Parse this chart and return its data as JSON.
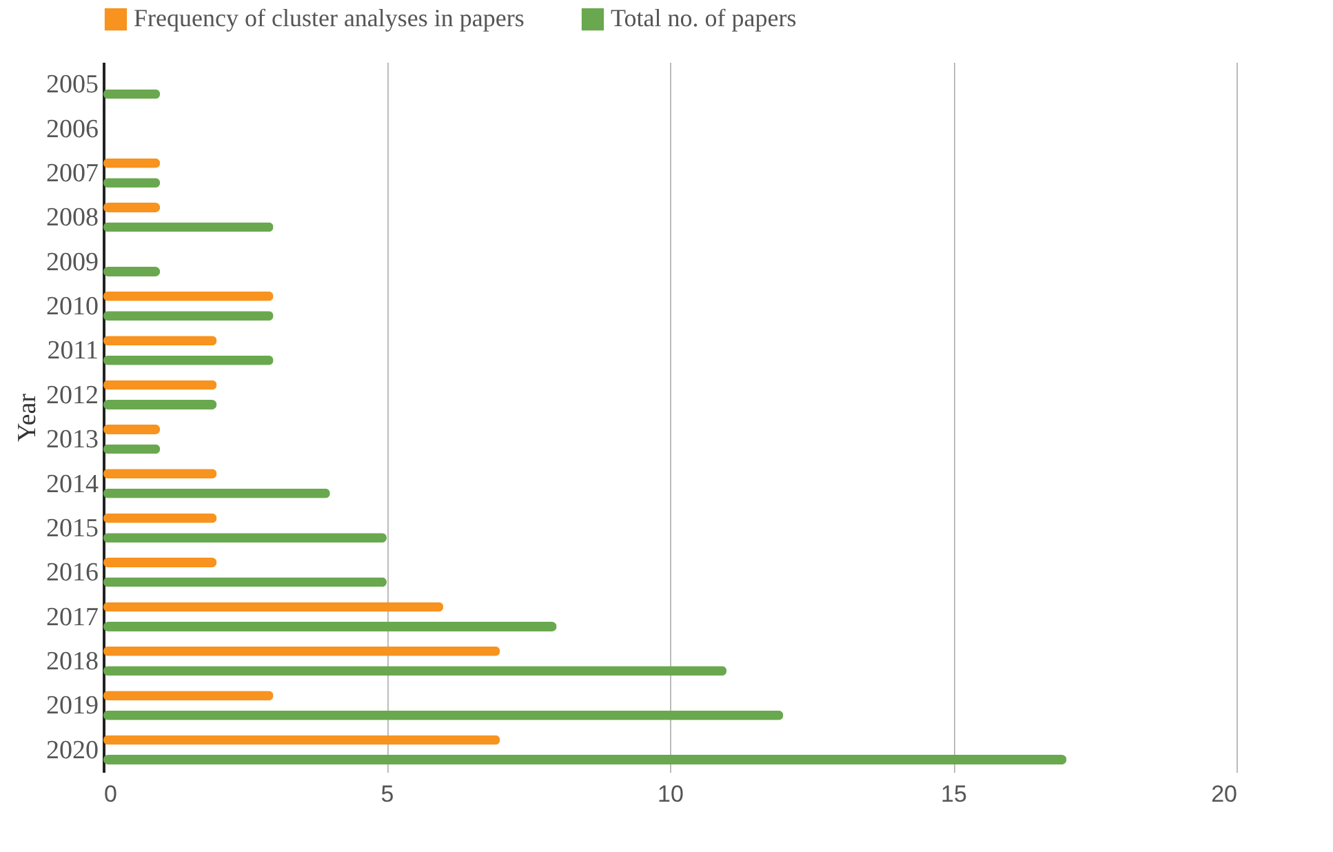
{
  "chart_data": {
    "type": "bar",
    "orientation": "horizontal",
    "ylabel": "Year",
    "categories": [
      "2005",
      "2006",
      "2007",
      "2008",
      "2009",
      "2010",
      "2011",
      "2012",
      "2013",
      "2014",
      "2015",
      "2016",
      "2017",
      "2018",
      "2019",
      "2020"
    ],
    "series": [
      {
        "name": "Frequency of cluster analyses in papers",
        "color": "#f7931e",
        "values": [
          0,
          0,
          1,
          1,
          0,
          3,
          2,
          2,
          1,
          2,
          2,
          2,
          6,
          7,
          3,
          7
        ]
      },
      {
        "name": "Total no. of papers",
        "color": "#6aa84f",
        "values": [
          1,
          0,
          1,
          3,
          1,
          3,
          3,
          2,
          1,
          4,
          5,
          5,
          8,
          11,
          12,
          17
        ]
      }
    ],
    "xlim": [
      0,
      20
    ],
    "xticks": [
      0,
      5,
      10,
      15,
      20
    ],
    "grid": "x",
    "legend": "top"
  }
}
